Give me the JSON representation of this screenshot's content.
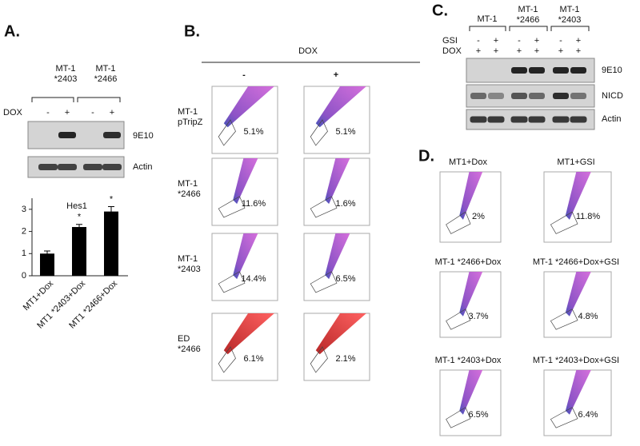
{
  "panel_a": {
    "label": "A.",
    "groups": [
      [
        "MT-1",
        "*2403"
      ],
      [
        "MT-1",
        "*2466"
      ]
    ],
    "dox_label": "DOX",
    "dox": [
      "-",
      "+",
      "-",
      "+"
    ],
    "blots": [
      "9E10",
      "Actin"
    ],
    "chart": {
      "title": "Hes1",
      "categories": [
        "MT1+Dox",
        "MT1 *2403+Dox",
        "MT1 *2466+Dox"
      ],
      "values": [
        1.0,
        2.2,
        2.9
      ],
      "errors": [
        0.12,
        0.12,
        0.22
      ],
      "significance": [
        null,
        "*",
        "*"
      ],
      "ylim": [
        0,
        3.5
      ],
      "yticks": [
        0,
        1,
        2,
        3
      ]
    }
  },
  "panel_b": {
    "label": "B.",
    "header": "DOX",
    "conditions": [
      "-",
      "+"
    ],
    "rows": [
      {
        "label": [
          "MT-1",
          "pTripZ"
        ],
        "percents": [
          "5.1%",
          "5.1%"
        ]
      },
      {
        "label": [
          "MT-1",
          "*2466"
        ],
        "percents": [
          "11.6%",
          "1.6%"
        ]
      },
      {
        "label": [
          "MT-1",
          "*2403"
        ],
        "percents": [
          "14.4%",
          "6.5%"
        ]
      },
      {
        "label": [
          "ED",
          "*2466"
        ],
        "percents": [
          "6.1%",
          "2.1%"
        ]
      }
    ]
  },
  "panel_c": {
    "label": "C.",
    "groups": [
      [
        "MT-1"
      ],
      [
        "MT-1",
        "*2466"
      ],
      [
        "MT-1",
        "*2403"
      ]
    ],
    "row_labels": [
      "GSI",
      "DOX"
    ],
    "gsi": [
      "-",
      "+",
      "-",
      "+",
      "-",
      "+"
    ],
    "dox": [
      "+",
      "+",
      "+",
      "+",
      "+",
      "+"
    ],
    "blots": [
      "9E10",
      "NICD",
      "Actin"
    ]
  },
  "panel_d": {
    "label": "D.",
    "plots": [
      {
        "title": "MT1+Dox",
        "percent": "2%"
      },
      {
        "title": "MT1+GSI",
        "percent": "11.8%"
      },
      {
        "title": "MT-1 *2466+Dox",
        "percent": "3.7%"
      },
      {
        "title": "MT-1 *2466+Dox+GSI",
        "percent": "4.8%"
      },
      {
        "title": "MT-1 *2403+Dox",
        "percent": "6.5%"
      },
      {
        "title": "MT-1 *2403+Dox+GSI",
        "percent": "6.4%"
      }
    ]
  }
}
